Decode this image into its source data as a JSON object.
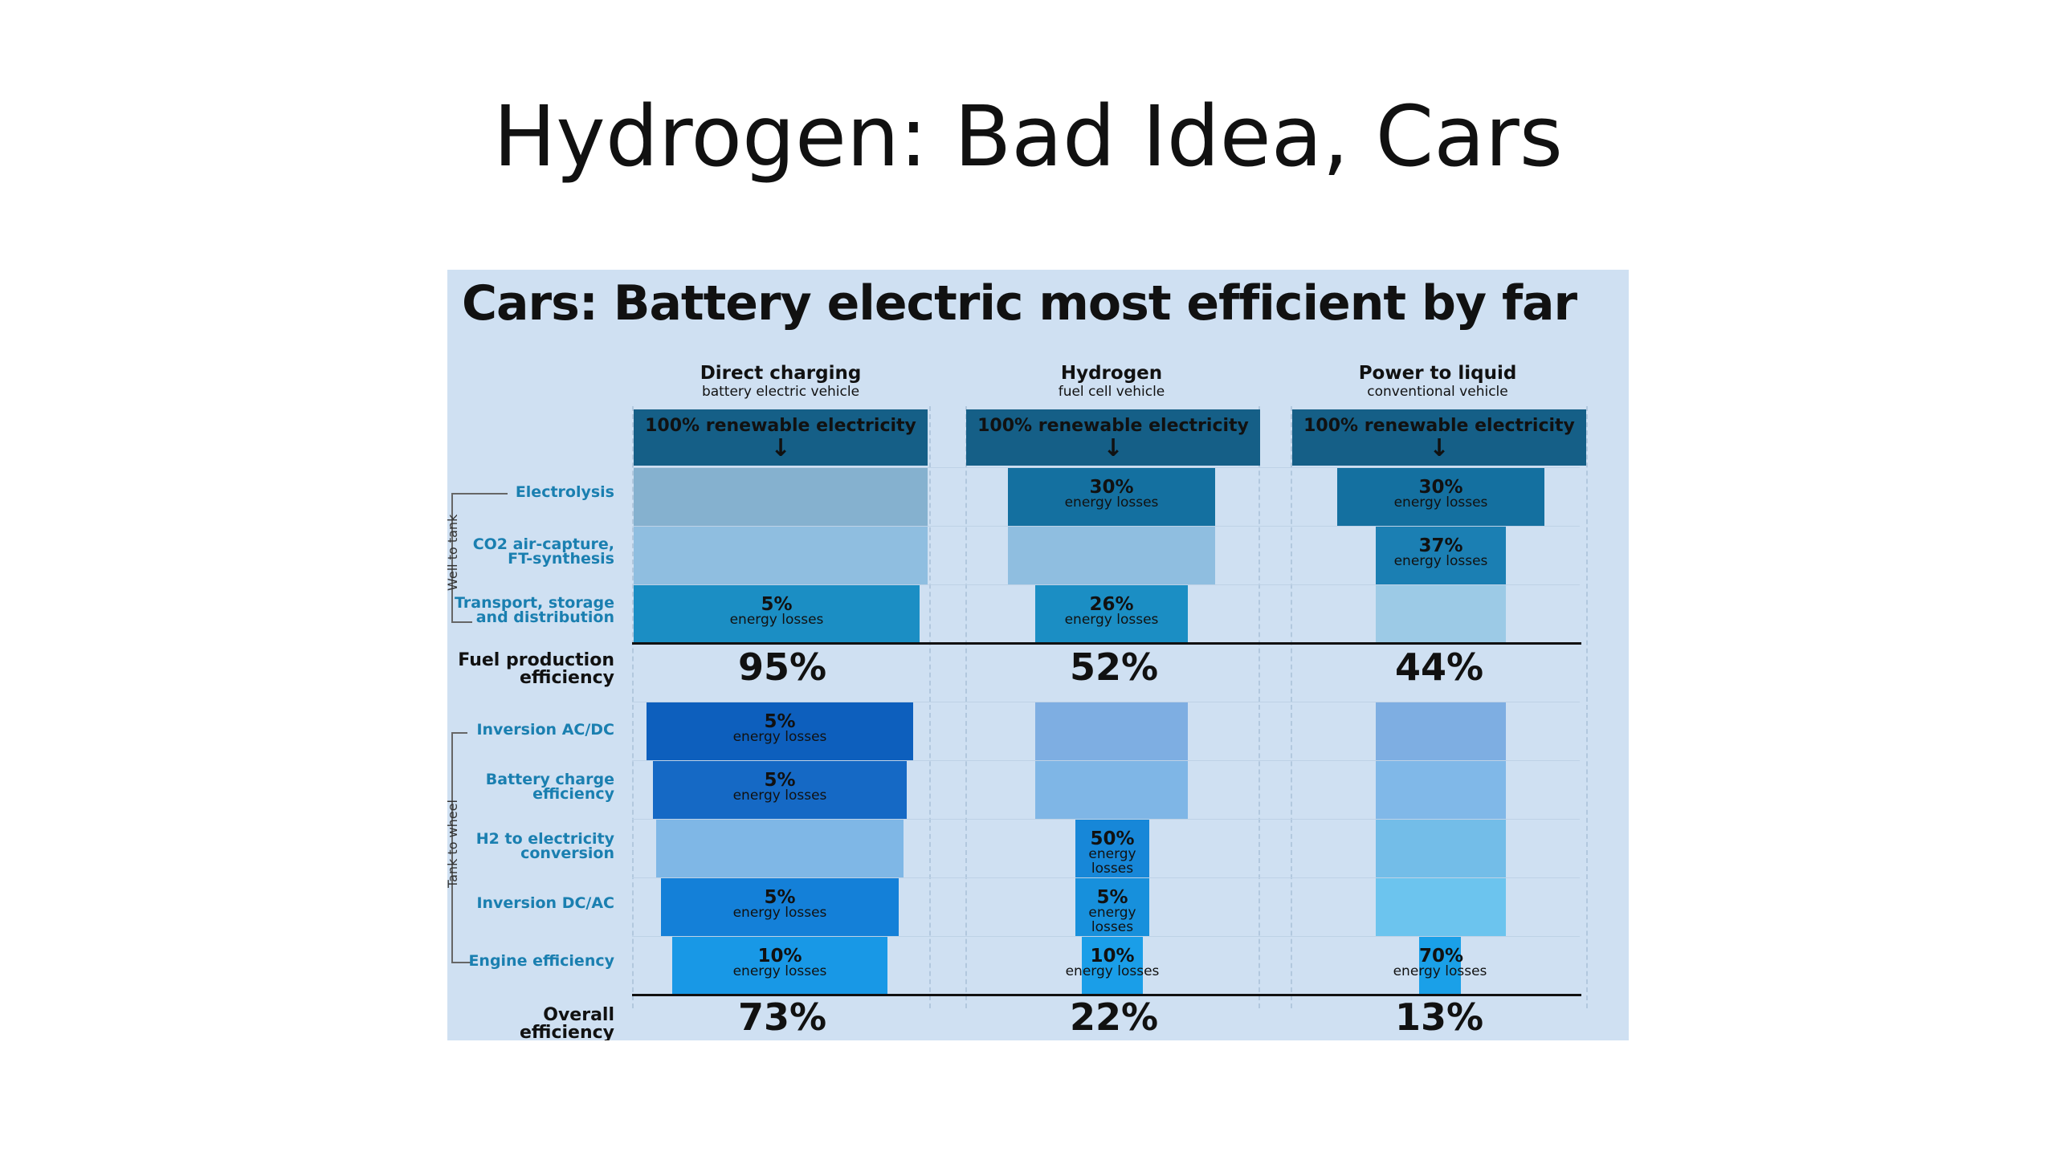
{
  "slide": {
    "title": "Hydrogen: Bad Idea, Cars"
  },
  "infographic": {
    "title": "Cars: Battery electric most efficient by far",
    "columns": [
      {
        "title": "Direct charging",
        "subtitle": "battery electric vehicle",
        "source": "100% renewable electricity"
      },
      {
        "title": "Hydrogen",
        "subtitle": "fuel cell vehicle",
        "source": "100% renewable electricity"
      },
      {
        "title": "Power to liquid",
        "subtitle": "conventional vehicle",
        "source": "100% renewable electricity"
      }
    ],
    "groups": {
      "well_to_tank": "Well to tank",
      "tank_to_wheel": "Tank to wheel"
    },
    "rows": {
      "electrolysis": "Electrolysis",
      "co2_capture": "CO2 air-capture, FT-synthesis",
      "transport": "Transport, storage and distribution",
      "fuel_production": "Fuel production efficiency",
      "inversion_acdc": "Inversion AC/DC",
      "battery_charge": "Battery charge efficiency",
      "h2_conversion": "H2 to electricity conversion",
      "inversion_dcac": "Inversion DC/AC",
      "engine": "Engine efficiency",
      "overall": "Overall efficiency"
    },
    "losses_label": "energy losses",
    "arrow_glyph": "↓",
    "cells": {
      "bev_transport": "5%",
      "h2_electrolysis": "30%",
      "h2_transport": "26%",
      "ptl_electrolysis": "30%",
      "ptl_co2": "37%",
      "bev_inversion_acdc": "5%",
      "bev_battery": "5%",
      "bev_inversion_dcac": "5%",
      "bev_engine": "10%",
      "h2_conversion": "50%",
      "h2_inversion_dcac": "5%",
      "h2_engine": "10%",
      "ptl_engine": "70%"
    },
    "fuel_production_efficiency": [
      "95%",
      "52%",
      "44%"
    ],
    "overall_efficiency": [
      "73%",
      "22%",
      "13%"
    ],
    "colors": {
      "background": "#cfe0f2",
      "source_block": "#155f87",
      "loss_dark": "#1470a0",
      "bev_blue": "#0d62c2",
      "sky": "#1aa0e8"
    }
  }
}
